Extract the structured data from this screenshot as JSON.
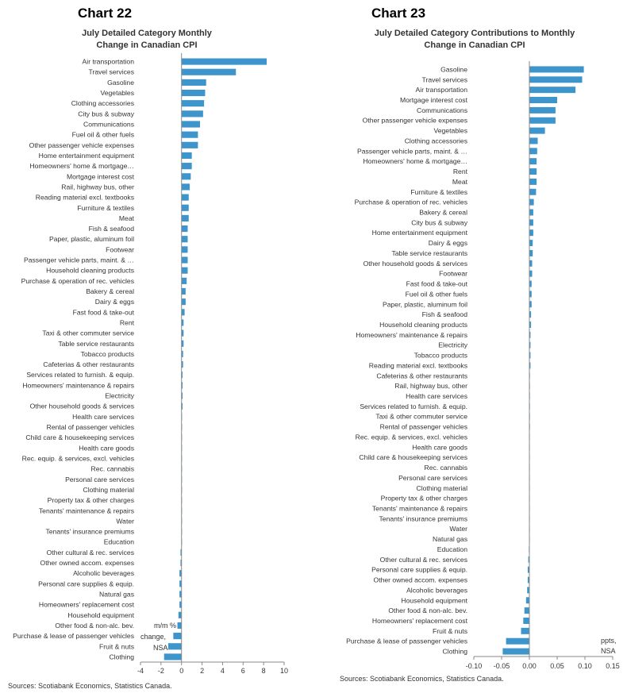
{
  "colors": {
    "bar": "#3d95cc",
    "axis": "#888888",
    "text": "#333333"
  },
  "charts": [
    {
      "chart_number": "Chart 22",
      "title_line1": "July Detailed Category Monthly",
      "title_line2": "Change in Canadian CPI",
      "unit_label_1": "m/m %",
      "unit_label_2": "change,",
      "unit_label_3": "NSA",
      "source": "Sources: Scotiabank Economics, Statistics Canada."
    },
    {
      "chart_number": "Chart 23",
      "title_line1": "July Detailed Category Contributions to Monthly",
      "title_line2": "Change in Canadian CPI",
      "unit_label_1": "ppts,",
      "unit_label_2": "NSA",
      "source": "Sources: Scotiabank Economics, Statistics Canada."
    }
  ],
  "chart_data": [
    {
      "type": "bar",
      "orientation": "horizontal",
      "xlim": [
        -4,
        10
      ],
      "xticks": [
        "-4",
        "-2",
        "0",
        "2",
        "4",
        "6",
        "8",
        "10"
      ],
      "categories": [
        "Air transportation",
        "Travel services",
        "Gasoline",
        "Vegetables",
        "Clothing accessories",
        "City bus & subway",
        "Communications",
        "Fuel oil & other fuels",
        "Other passenger vehicle expenses",
        "Home entertainment equipment",
        "Homeowners' home & mortgage…",
        "Mortgage interest cost",
        "Rail, highway bus, other",
        "Reading material excl. textbooks",
        "Furniture & textiles",
        "Meat",
        "Fish & seafood",
        "Paper, plastic, aluminum foil",
        "Footwear",
        "Passenger vehicle parts, maint. & …",
        "Household cleaning products",
        "Purchase & operation of rec. vehicles",
        "Bakery & cereal",
        "Dairy & eggs",
        "Fast food & take-out",
        "Rent",
        "Taxi & other commuter service",
        "Table service restaurants",
        "Tobacco products",
        "Cafeterias & other restaurants",
        "Services related to furnish. & equip.",
        "Homeowners' maintenance & repairs",
        "Electricity",
        "Other household goods & services",
        "Health care services",
        "Rental of passenger vehicles",
        "Child care & housekeeping services",
        "Health care goods",
        "Rec. equip. & services, excl. vehicles",
        "Rec. cannabis",
        "Personal care services",
        "Clothing material",
        "Property tax & other charges",
        "Tenants' maintenance & repairs",
        "Water",
        "Tenants' insurance premiums",
        "Education",
        "Other cultural & rec. services",
        "Other owned accom. expenses",
        "Alcoholic beverages",
        "Personal care supplies & equip.",
        "Natural gas",
        "Homeowners' replacement cost",
        "Household equipment",
        "Other food & non-alc. bev.",
        "Purchase & lease of passenger vehicles",
        "Fruit & nuts",
        "Clothing"
      ],
      "values": [
        8.3,
        5.3,
        2.4,
        2.3,
        2.2,
        2.1,
        1.8,
        1.6,
        1.6,
        1.0,
        1.0,
        0.9,
        0.8,
        0.7,
        0.7,
        0.7,
        0.6,
        0.6,
        0.6,
        0.6,
        0.6,
        0.5,
        0.4,
        0.4,
        0.3,
        0.2,
        0.2,
        0.2,
        0.15,
        0.15,
        0.1,
        0.1,
        0.1,
        0.1,
        0.05,
        0.05,
        0.03,
        0.02,
        0.02,
        0.0,
        0.0,
        0.0,
        0.0,
        0.0,
        0.0,
        0.0,
        0.0,
        -0.1,
        -0.1,
        -0.2,
        -0.2,
        -0.2,
        -0.2,
        -0.3,
        -0.4,
        -0.8,
        -1.3,
        -1.7
      ]
    },
    {
      "type": "bar",
      "orientation": "horizontal",
      "xlim": [
        -0.1,
        0.15
      ],
      "xticks": [
        "-0.10",
        "-0.05",
        "0.00",
        "0.05",
        "0.10",
        "0.15"
      ],
      "categories": [
        "Gasoline",
        "Travel services",
        "Air transportation",
        "Mortgage interest cost",
        "Communications",
        "Other passenger vehicle expenses",
        "Vegetables",
        "Clothing accessories",
        "Passenger vehicle parts, maint. & …",
        "Homeowners' home & mortgage…",
        "Rent",
        "Meat",
        "Furniture & textiles",
        "Purchase & operation of rec. vehicles",
        "Bakery & cereal",
        "City bus & subway",
        "Home entertainment equipment",
        "Dairy & eggs",
        "Table service restaurants",
        "Other household goods & services",
        "Footwear",
        "Fast food & take-out",
        "Fuel oil & other fuels",
        "Paper, plastic, aluminum foil",
        "Fish & seafood",
        "Household cleaning products",
        "Homeowners' maintenance & repairs",
        "Electricity",
        "Tobacco products",
        "Reading material excl. textbooks",
        "Cafeterias & other restaurants",
        "Rail, highway bus, other",
        "Health care services",
        "Services related to furnish. & equip.",
        "Taxi & other commuter service",
        "Rental of passenger vehicles",
        "Rec. equip. & services, excl. vehicles",
        "Health care goods",
        "Child care & housekeeping services",
        "Rec. cannabis",
        "Personal care services",
        "Clothing material",
        "Property tax & other charges",
        "Tenants' maintenance & repairs",
        "Tenants' insurance premiums",
        "Water",
        "Natural gas",
        "Education",
        "Other cultural & rec. services",
        "Personal care supplies & equip.",
        "Other owned accom. expenses",
        "Alcoholic beverages",
        "Household equipment",
        "Other food & non-alc. bev.",
        "Homeowners' replacement cost",
        "Fruit & nuts",
        "Purchase & lease of passenger vehicles",
        "Clothing"
      ],
      "values": [
        0.098,
        0.095,
        0.083,
        0.05,
        0.047,
        0.047,
        0.028,
        0.015,
        0.014,
        0.013,
        0.013,
        0.013,
        0.012,
        0.008,
        0.007,
        0.007,
        0.007,
        0.006,
        0.006,
        0.005,
        0.005,
        0.004,
        0.004,
        0.004,
        0.003,
        0.003,
        0.002,
        0.002,
        0.002,
        0.002,
        0.001,
        0.001,
        0.001,
        0.001,
        0.001,
        0.001,
        0.0,
        0.0,
        0.0,
        0.0,
        0.0,
        0.0,
        0.0,
        0.0,
        0.0,
        0.0,
        0.0,
        -0.001,
        -0.002,
        -0.003,
        -0.003,
        -0.004,
        -0.006,
        -0.009,
        -0.011,
        -0.015,
        -0.042,
        -0.048
      ]
    }
  ]
}
